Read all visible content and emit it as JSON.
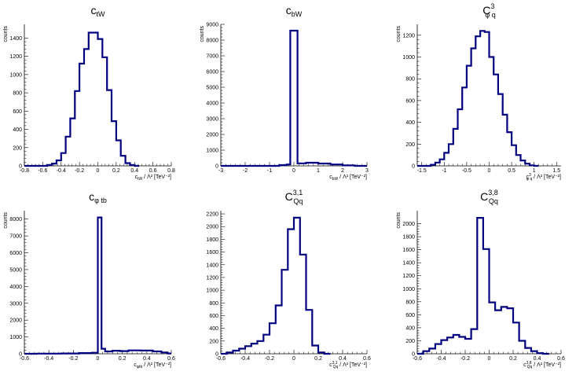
{
  "chart_data": [
    {
      "type": "bar",
      "title": {
        "main": "c",
        "sub": "tW",
        "sup": ""
      },
      "ylabel": "counts",
      "xlabel": {
        "sym": "c",
        "sub": "tW",
        "sup": "",
        "rest": " / Λ² [TeV⁻²]"
      },
      "xlim": [
        -0.8,
        0.8
      ],
      "ylim": [
        0,
        1550
      ],
      "xticks": [
        -0.8,
        -0.6,
        -0.4,
        -0.2,
        0,
        0.2,
        0.4,
        0.6,
        0.8
      ],
      "xtick_labels": [
        "-0.8",
        "-0.6",
        "-0.4",
        "-0.2",
        "0",
        "0.2",
        "0.4",
        "0.6",
        "0.8"
      ],
      "yticks": [
        0,
        200,
        400,
        600,
        800,
        1000,
        1200,
        1400
      ],
      "ytick_labels": [
        "0",
        "200",
        "400",
        "600",
        "800",
        "1000",
        "1200",
        "1400"
      ],
      "bins": [
        [
          -0.8,
          0
        ],
        [
          -0.6,
          0
        ],
        [
          -0.55,
          10
        ],
        [
          -0.5,
          25
        ],
        [
          -0.45,
          60
        ],
        [
          -0.4,
          140
        ],
        [
          -0.35,
          320
        ],
        [
          -0.3,
          520
        ],
        [
          -0.25,
          820
        ],
        [
          -0.2,
          1120
        ],
        [
          -0.15,
          1280
        ],
        [
          -0.1,
          1460
        ],
        [
          -0.05,
          1460
        ],
        [
          0,
          1390
        ],
        [
          0.05,
          1190
        ],
        [
          0.1,
          830
        ],
        [
          0.15,
          490
        ],
        [
          0.2,
          280
        ],
        [
          0.25,
          110
        ],
        [
          0.3,
          30
        ],
        [
          0.35,
          10
        ],
        [
          0.4,
          0
        ]
      ],
      "bin_width": 0.05
    },
    {
      "type": "bar",
      "title": {
        "main": "c",
        "sub": "bW",
        "sup": ""
      },
      "ylabel": "counts",
      "xlabel": {
        "sym": "c",
        "sub": "bW",
        "sup": "",
        "rest": " / Λ² [TeV⁻²]"
      },
      "xlim": [
        -3,
        3
      ],
      "ylim": [
        0,
        9000
      ],
      "xticks": [
        -3,
        -2,
        -1,
        0,
        1,
        2,
        3
      ],
      "xtick_labels": [
        "-3",
        "-2",
        "-1",
        "0",
        "1",
        "2",
        "3"
      ],
      "yticks": [
        0,
        1000,
        2000,
        3000,
        4000,
        5000,
        6000,
        7000,
        8000,
        9000
      ],
      "ytick_labels": [
        "0",
        "1000",
        "2000",
        "3000",
        "4000",
        "5000",
        "6000",
        "7000",
        "8000",
        "9000"
      ],
      "bins": [
        [
          -3,
          0
        ],
        [
          -2.7,
          0
        ],
        [
          -0.6,
          50
        ],
        [
          -0.3,
          90
        ],
        [
          -0.15,
          8600
        ],
        [
          0.15,
          160
        ],
        [
          0.5,
          200
        ],
        [
          1,
          150
        ],
        [
          1.5,
          90
        ],
        [
          2,
          30
        ],
        [
          2.5,
          0
        ]
      ],
      "bin_width": null
    },
    {
      "type": "bar",
      "title": {
        "main": "C",
        "sub": "φ q",
        "sup": "3"
      },
      "ylabel": "counts",
      "xlabel": {
        "sym": "c",
        "sub": "φ q",
        "sup": "3",
        "rest": " / Λ² [TeV⁻²]"
      },
      "xlim": [
        -1.6,
        1.6
      ],
      "ylim": [
        0,
        1300
      ],
      "xticks": [
        -1.5,
        -1,
        -0.5,
        0,
        0.5,
        1,
        1.5
      ],
      "xtick_labels": [
        "-1.5",
        "-1",
        "-0.5",
        "0",
        "0.5",
        "1",
        "1.5"
      ],
      "yticks": [
        0,
        200,
        400,
        600,
        800,
        1000,
        1200
      ],
      "ytick_labels": [
        "0",
        "200",
        "400",
        "600",
        "800",
        "1000",
        "1200"
      ],
      "bins": [
        [
          -1.6,
          0
        ],
        [
          -1.3,
          10
        ],
        [
          -1.2,
          30
        ],
        [
          -1.1,
          60
        ],
        [
          -1.0,
          120
        ],
        [
          -0.9,
          200
        ],
        [
          -0.8,
          340
        ],
        [
          -0.7,
          520
        ],
        [
          -0.6,
          720
        ],
        [
          -0.5,
          920
        ],
        [
          -0.4,
          1080
        ],
        [
          -0.3,
          1190
        ],
        [
          -0.2,
          1240
        ],
        [
          -0.1,
          1230
        ],
        [
          0.0,
          1000
        ],
        [
          0.1,
          840
        ],
        [
          0.2,
          660
        ],
        [
          0.3,
          470
        ],
        [
          0.4,
          310
        ],
        [
          0.5,
          190
        ],
        [
          0.6,
          100
        ],
        [
          0.7,
          50
        ],
        [
          0.8,
          20
        ],
        [
          0.9,
          5
        ],
        [
          1.0,
          0
        ]
      ],
      "bin_width": 0.1
    },
    {
      "type": "bar",
      "title": {
        "main": "c",
        "sub": "φ tb",
        "sup": ""
      },
      "ylabel": "counts",
      "xlabel": {
        "sym": "c",
        "sub": "φtb",
        "sup": "",
        "rest": " / Λ² [TeV⁻²]"
      },
      "xlim": [
        -0.6,
        0.6
      ],
      "ylim": [
        0,
        8500
      ],
      "xticks": [
        -0.6,
        -0.4,
        -0.2,
        0,
        0.2,
        0.4,
        0.6
      ],
      "xtick_labels": [
        "-0.6",
        "-0.4",
        "-0.2",
        "0",
        "0.2",
        "0.4",
        "0.6"
      ],
      "yticks": [
        0,
        1000,
        2000,
        3000,
        4000,
        5000,
        6000,
        7000,
        8000
      ],
      "ytick_labels": [
        "0",
        "1000",
        "2000",
        "3000",
        "4000",
        "5000",
        "6000",
        "7000",
        "8000"
      ],
      "bins": [
        [
          -0.6,
          0
        ],
        [
          -0.5,
          10
        ],
        [
          -0.3,
          20
        ],
        [
          -0.15,
          40
        ],
        [
          -0.05,
          60
        ],
        [
          0,
          8100
        ],
        [
          0.03,
          300
        ],
        [
          0.06,
          140
        ],
        [
          0.12,
          180
        ],
        [
          0.18,
          160
        ],
        [
          0.25,
          200
        ],
        [
          0.35,
          190
        ],
        [
          0.45,
          140
        ],
        [
          0.52,
          80
        ],
        [
          0.57,
          20
        ]
      ],
      "bin_width": null
    },
    {
      "type": "bar",
      "title": {
        "main": "C",
        "sub": "Qq",
        "sup": "3,1"
      },
      "ylabel": "",
      "xlabel": {
        "sym": "c",
        "sub": "Qq",
        "sup": "3,1",
        "rest": " / Λ² [TeV⁻²]"
      },
      "xlim": [
        -0.6,
        0.6
      ],
      "ylim": [
        0,
        2250
      ],
      "xticks": [
        -0.6,
        -0.4,
        -0.2,
        0,
        0.2,
        0.4,
        0.6
      ],
      "xtick_labels": [
        "-0.6",
        "-0.4",
        "-0.2",
        "0",
        "0.2",
        "0.4",
        "0.6"
      ],
      "yticks": [
        0,
        200,
        400,
        600,
        800,
        1000,
        1200,
        1400,
        1600,
        1800,
        2000,
        2200
      ],
      "ytick_labels": [
        "0",
        "200",
        "400",
        "600",
        "800",
        "1000",
        "1200",
        "1400",
        "1600",
        "1800",
        "2000",
        "2200"
      ],
      "bins": [
        [
          -0.6,
          0
        ],
        [
          -0.55,
          20
        ],
        [
          -0.5,
          50
        ],
        [
          -0.45,
          80
        ],
        [
          -0.4,
          120
        ],
        [
          -0.35,
          160
        ],
        [
          -0.3,
          200
        ],
        [
          -0.25,
          300
        ],
        [
          -0.2,
          480
        ],
        [
          -0.15,
          760
        ],
        [
          -0.1,
          1320
        ],
        [
          -0.05,
          1960
        ],
        [
          0,
          2140
        ],
        [
          0.05,
          1560
        ],
        [
          0.1,
          690
        ],
        [
          0.15,
          130
        ],
        [
          0.2,
          20
        ],
        [
          0.25,
          0
        ]
      ],
      "bin_width": 0.05
    },
    {
      "type": "bar",
      "title": {
        "main": "C",
        "sub": "Qq",
        "sup": "3,8"
      },
      "ylabel": "counts",
      "xlabel": {
        "sym": "c",
        "sub": "Qq",
        "sup": "3,8",
        "rest": " / Λ² [TeV⁻²]"
      },
      "xlim": [
        -0.6,
        0.6
      ],
      "ylim": [
        0,
        2200
      ],
      "xticks": [
        -0.6,
        -0.4,
        -0.2,
        0,
        0.2,
        0.4,
        0.6
      ],
      "xtick_labels": [
        "-0.6",
        "-0.4",
        "-0.2",
        "0",
        "0.2",
        "0.4",
        "0.6"
      ],
      "yticks": [
        0,
        200,
        400,
        600,
        800,
        1000,
        1200,
        1400,
        1600,
        1800,
        2000
      ],
      "ytick_labels": [
        "0",
        "200",
        "400",
        "600",
        "800",
        "1000",
        "1200",
        "1400",
        "1600",
        "1800",
        "2000"
      ],
      "bins": [
        [
          -0.6,
          0
        ],
        [
          -0.55,
          40
        ],
        [
          -0.5,
          80
        ],
        [
          -0.45,
          150
        ],
        [
          -0.4,
          210
        ],
        [
          -0.35,
          250
        ],
        [
          -0.3,
          290
        ],
        [
          -0.25,
          260
        ],
        [
          -0.2,
          230
        ],
        [
          -0.15,
          380
        ],
        [
          -0.1,
          2090
        ],
        [
          -0.05,
          1610
        ],
        [
          0,
          790
        ],
        [
          0.05,
          670
        ],
        [
          0.1,
          720
        ],
        [
          0.15,
          700
        ],
        [
          0.2,
          480
        ],
        [
          0.25,
          200
        ],
        [
          0.3,
          90
        ],
        [
          0.35,
          40
        ],
        [
          0.4,
          10
        ],
        [
          0.45,
          0
        ]
      ],
      "bin_width": 0.05
    }
  ],
  "colors": {
    "histogram_line": "#000080",
    "axis": "#000000",
    "background": "#ffffff"
  }
}
